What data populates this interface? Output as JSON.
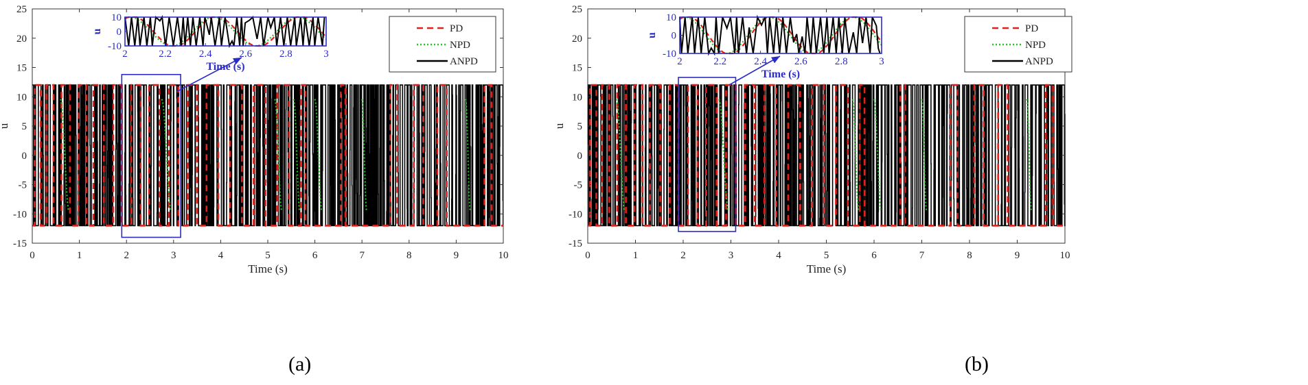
{
  "chart_data": [
    {
      "type": "line",
      "panel_label": "(a)",
      "xlabel": "Time (s)",
      "ylabel": "u",
      "xlim": [
        0,
        10
      ],
      "ylim": [
        -15,
        25
      ],
      "xticks": [
        0,
        1,
        2,
        3,
        4,
        5,
        6,
        7,
        8,
        9,
        10
      ],
      "yticks": [
        -15,
        -10,
        -5,
        0,
        5,
        10,
        15,
        20,
        25
      ],
      "grid": false,
      "legend_position": "top-right",
      "series": [
        {
          "name": "PD",
          "color": "#e0201b",
          "style": "dashed",
          "amplitude": 12,
          "switch_times": [
            0.05,
            0.18,
            0.3,
            0.45,
            0.62,
            0.8,
            0.98,
            1.15,
            1.3,
            1.52,
            1.72,
            1.9,
            2.1,
            2.3,
            2.48,
            2.7,
            2.9,
            3.1,
            3.3,
            3.5,
            3.7,
            3.95,
            4.2,
            4.45,
            4.7,
            4.95,
            5.2,
            5.45,
            5.7,
            5.8,
            6.55,
            6.65,
            7.6,
            7.75,
            8.1,
            8.3,
            8.6,
            8.8,
            9.6,
            9.75
          ]
        },
        {
          "name": "NPD",
          "color": "#22c322",
          "style": "dotted",
          "amplitude": 12,
          "transition_times": [
            0.6,
            0.78,
            2.75,
            2.95,
            5.15,
            5.3,
            5.55,
            5.68,
            6.0,
            6.15,
            7.0,
            7.1,
            9.2,
            9.3
          ]
        },
        {
          "name": "ANPD",
          "color": "#000000",
          "style": "solid",
          "amplitude": 12,
          "note": "rapid chattering between -12 and 12"
        }
      ],
      "inset": {
        "xlabel": "Time (s)",
        "ylabel": "u",
        "xlim": [
          2,
          3
        ],
        "ylim": [
          -10,
          10
        ],
        "xticks": [
          2,
          2.2,
          2.4,
          2.6,
          2.8,
          3
        ],
        "yticks": [
          -10,
          0,
          10
        ],
        "zoom_range_x": [
          1.9,
          3.15
        ],
        "zoom_range_y": [
          -14,
          13.8
        ]
      }
    },
    {
      "type": "line",
      "panel_label": "(b)",
      "xlabel": "Time (s)",
      "ylabel": "u",
      "xlim": [
        0,
        10
      ],
      "ylim": [
        -15,
        25
      ],
      "xticks": [
        0,
        1,
        2,
        3,
        4,
        5,
        6,
        7,
        8,
        9,
        10
      ],
      "yticks": [
        -15,
        -10,
        -5,
        0,
        5,
        10,
        15,
        20,
        25
      ],
      "grid": false,
      "legend_position": "top-right",
      "series": [
        {
          "name": "PD",
          "color": "#e0201b",
          "style": "dashed",
          "amplitude": 12,
          "switch_times": [
            0.05,
            0.18,
            0.3,
            0.45,
            0.62,
            0.8,
            0.98,
            1.15,
            1.3,
            1.52,
            1.72,
            1.9,
            2.1,
            2.3,
            2.48,
            2.7,
            2.9,
            3.1,
            3.3,
            3.5,
            3.7,
            3.95,
            4.2,
            4.45,
            4.7,
            4.95,
            5.2,
            5.45,
            5.7,
            5.8,
            6.55,
            6.65,
            7.6,
            7.75,
            8.1,
            8.3,
            8.6,
            8.8,
            9.6,
            9.75
          ]
        },
        {
          "name": "NPD",
          "color": "#22c322",
          "style": "dotted",
          "amplitude": 12,
          "transition_times": [
            0.6,
            0.78,
            2.75,
            2.95,
            5.55,
            5.68,
            6.0,
            6.15,
            7.0,
            7.1,
            9.2,
            9.3
          ]
        },
        {
          "name": "ANPD",
          "color": "#000000",
          "style": "solid",
          "amplitude": 12,
          "note": "rapid chattering between -12 and 12"
        }
      ],
      "inset": {
        "xlabel": "Time (s)",
        "ylabel": "u",
        "xlim": [
          2,
          3
        ],
        "ylim": [
          -10,
          10
        ],
        "xticks": [
          2,
          2.2,
          2.4,
          2.6,
          2.8,
          3
        ],
        "yticks": [
          -10,
          0,
          10
        ],
        "zoom_range_x": [
          1.9,
          3.1
        ],
        "zoom_range_y": [
          -13,
          13.3
        ]
      }
    }
  ]
}
